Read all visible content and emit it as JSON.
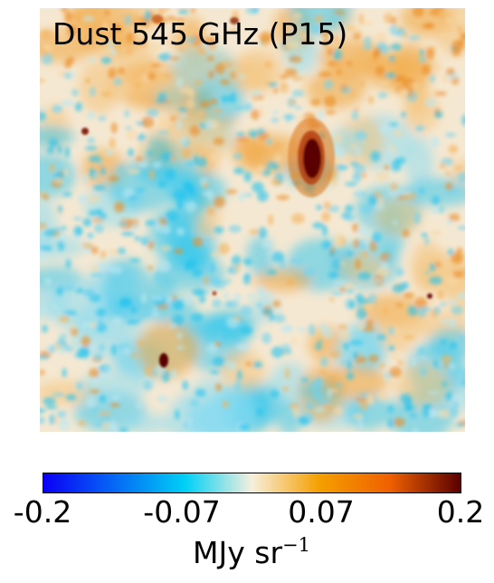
{
  "map": {
    "title": "Dust 545 GHz (P15)"
  },
  "colorbar": {
    "ticks": [
      "-0.2",
      "-0.07",
      "0.07",
      "0.2"
    ],
    "min": -0.2,
    "max": 0.2,
    "unit_base": "MJy sr",
    "unit_exponent": "−1",
    "colors": [
      "#0a00f5",
      "#00d0f5",
      "#f7efdc",
      "#f5a000",
      "#f06000",
      "#5a0000"
    ]
  }
}
